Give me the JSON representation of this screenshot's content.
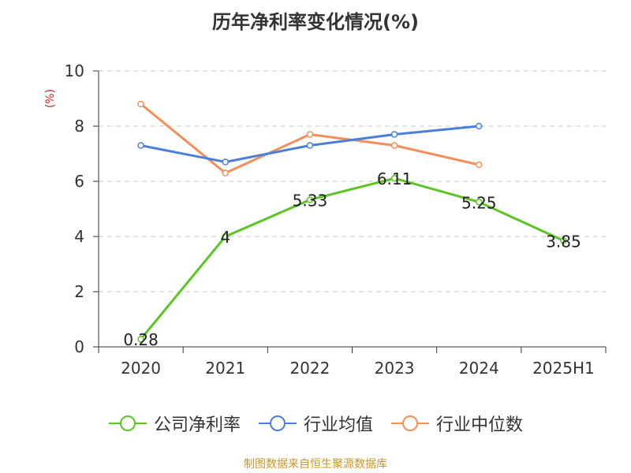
{
  "title": "历年净利率变化情况(%)",
  "source_note": "制图数据来自恒生聚源数据库",
  "chart_data": {
    "type": "line",
    "title": "历年净利率变化情况(%)",
    "xlabel": "",
    "ylabel": "(%)",
    "categories": [
      "2020",
      "2021",
      "2022",
      "2023",
      "2024",
      "2025H1"
    ],
    "ylim": [
      0,
      10
    ],
    "yticks": [
      0,
      2,
      4,
      6,
      8,
      10
    ],
    "grid": true,
    "legend_position": "bottom",
    "series": [
      {
        "name": "公司净利率",
        "color": "#5cc424",
        "values": [
          0.28,
          4,
          5.33,
          6.11,
          5.25,
          3.85
        ],
        "labels": [
          "0.28",
          "4",
          "5.33",
          "6.11",
          "5.25",
          "3.85"
        ]
      },
      {
        "name": "行业均值",
        "color": "#4a7fd9",
        "values": [
          7.3,
          6.7,
          7.3,
          7.7,
          8.0,
          null
        ]
      },
      {
        "name": "行业中位数",
        "color": "#f58e5a",
        "values": [
          8.8,
          6.3,
          7.7,
          7.3,
          6.6,
          null
        ]
      }
    ]
  }
}
